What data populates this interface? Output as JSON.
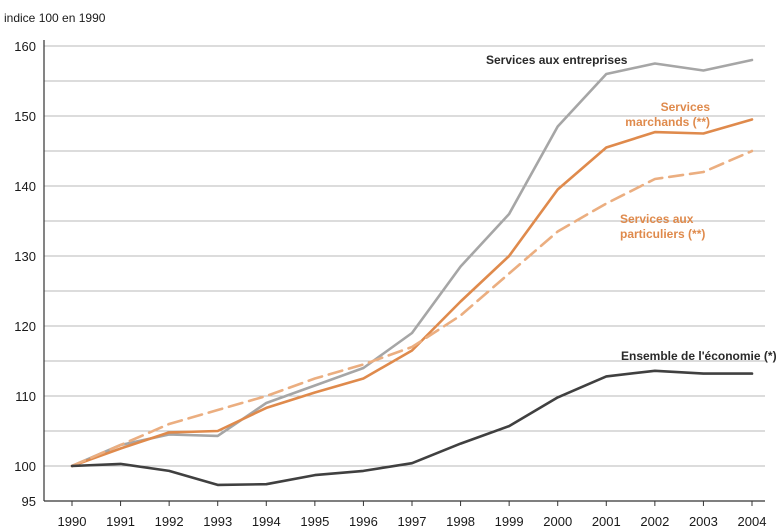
{
  "chart_data": {
    "type": "line",
    "unit_label": "indice 100 en 1990",
    "ylim": [
      95,
      160
    ],
    "yticks": [
      95,
      100,
      110,
      120,
      130,
      140,
      150,
      160
    ],
    "grid": "horizontal",
    "x": [
      "1990",
      "1991",
      "1992",
      "1993",
      "1994",
      "1995",
      "1996",
      "1997",
      "1998",
      "1999",
      "2000",
      "2001",
      "2002",
      "2003",
      "2004"
    ],
    "series": [
      {
        "name_lines": [
          "Services aux entreprises"
        ],
        "color": "#a6a6a6",
        "style": "solid",
        "values": [
          100,
          103,
          104.5,
          104.3,
          109,
          111.5,
          114,
          119,
          128.5,
          136,
          148.5,
          156,
          157.5,
          156.5,
          158
        ]
      },
      {
        "name_lines": [
          "Services",
          "marchands (**)"
        ],
        "color": "#df8a4c",
        "style": "solid",
        "values": [
          100,
          102.5,
          104.8,
          105,
          108.3,
          110.5,
          112.5,
          116.5,
          123.5,
          130,
          139.5,
          145.5,
          147.7,
          147.5,
          149.5
        ]
      },
      {
        "name_lines": [
          "Services aux",
          "particuliers (**)"
        ],
        "color": "#ebae80",
        "style": "dashed",
        "values": [
          100,
          103,
          106,
          108,
          110,
          112.5,
          114.5,
          117,
          121.5,
          127.5,
          133.5,
          137.5,
          141,
          142,
          145
        ]
      },
      {
        "name_lines": [
          "Ensemble de l'économie (*)"
        ],
        "color": "#404040",
        "style": "solid",
        "values": [
          100,
          100.3,
          99.3,
          97.3,
          97.4,
          98.7,
          99.3,
          100.4,
          103.2,
          105.7,
          109.8,
          112.8,
          113.6,
          113.2,
          113.2
        ]
      }
    ]
  }
}
